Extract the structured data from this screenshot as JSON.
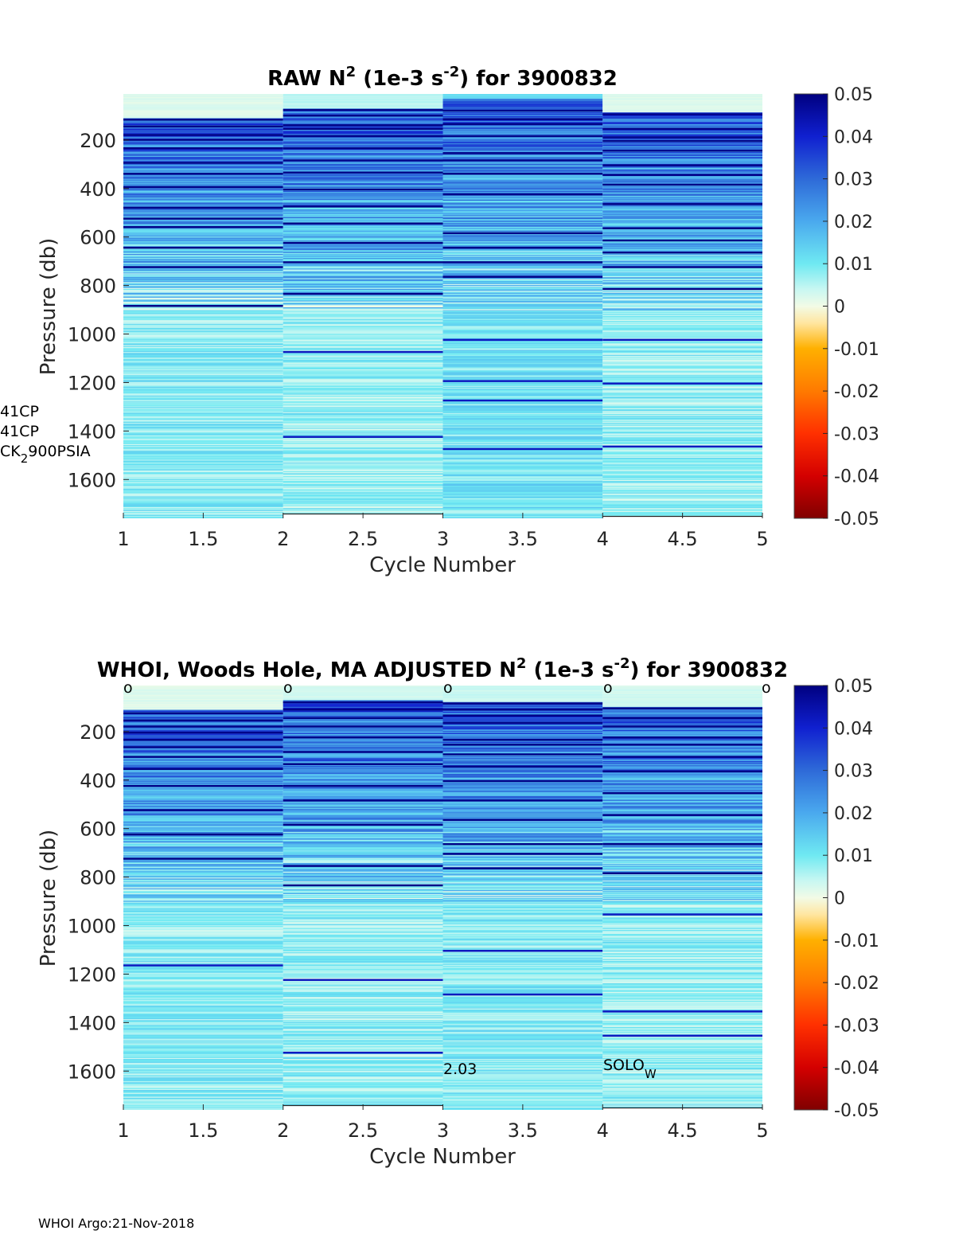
{
  "footer": "WHOI Argo:21-Nov-2018",
  "colorscale": {
    "vmin": -0.05,
    "vmax": 0.05,
    "ticks": [
      0.05,
      0.04,
      0.03,
      0.02,
      0.01,
      0,
      -0.01,
      -0.02,
      -0.03,
      -0.04,
      -0.05
    ],
    "tick_labels": [
      "0.05",
      "0.04",
      "0.03",
      "0.02",
      "0.01",
      "0",
      "-0.01",
      "-0.02",
      "-0.03",
      "-0.04",
      "-0.05"
    ],
    "stops": [
      {
        "v": -0.05,
        "c": "#800000"
      },
      {
        "v": -0.04,
        "c": "#d40000"
      },
      {
        "v": -0.03,
        "c": "#ff3000"
      },
      {
        "v": -0.02,
        "c": "#ff7a00"
      },
      {
        "v": -0.01,
        "c": "#ffb000"
      },
      {
        "v": -0.004,
        "c": "#ffe6a0"
      },
      {
        "v": 0.0,
        "c": "#f2fbe6"
      },
      {
        "v": 0.004,
        "c": "#c8f7f2"
      },
      {
        "v": 0.01,
        "c": "#6fe9f2"
      },
      {
        "v": 0.02,
        "c": "#4aa9ee"
      },
      {
        "v": 0.03,
        "c": "#2e6ad8"
      },
      {
        "v": 0.04,
        "c": "#1020d0"
      },
      {
        "v": 0.05,
        "c": "#000080"
      }
    ]
  },
  "chart_data": [
    {
      "type": "heatmap",
      "id": "raw",
      "title": {
        "main": "RAW N",
        "sup": "2",
        "mid": " (1e-3 s",
        "sup2": "-2",
        "end": ") for 3900832"
      },
      "xlabel": "Cycle Number",
      "ylabel": "Pressure (db)",
      "xlim": [
        1,
        5
      ],
      "ylim": [
        10,
        1760
      ],
      "x_ticks": [
        1,
        1.5,
        2,
        2.5,
        3,
        3.5,
        4,
        4.5,
        5
      ],
      "x_tick_labels": [
        "1",
        "1.5",
        "2",
        "2.5",
        "3",
        "3.5",
        "4",
        "4.5",
        "5"
      ],
      "y_ticks": [
        200,
        400,
        600,
        800,
        1000,
        1200,
        1400,
        1600
      ],
      "y_tick_labels": [
        "200",
        "400",
        "600",
        "800",
        "1000",
        "1200",
        "1400",
        "1600"
      ],
      "columns": [
        {
          "x0": 1,
          "x1": 2,
          "pmax": 1760,
          "top_band": [
            10,
            110,
            0.002
          ],
          "thermocline": [
            110,
            900
          ],
          "deep_level": 0.009,
          "strong_lines": [
            112,
            140,
            175,
            195,
            230,
            290,
            335,
            390,
            475,
            520,
            555,
            640,
            720,
            880
          ]
        },
        {
          "x0": 2,
          "x1": 3,
          "pmax": 1740,
          "top_band": [
            10,
            70,
            0.005
          ],
          "thermocline": [
            70,
            900
          ],
          "deep_level": 0.008,
          "strong_lines": [
            72,
            95,
            135,
            150,
            180,
            230,
            280,
            330,
            400,
            470,
            540,
            620,
            700,
            830,
            1070,
            1420
          ]
        },
        {
          "x0": 3,
          "x1": 4,
          "pmax": 1760,
          "top_band": [
            10,
            30,
            0.012
          ],
          "thermocline": [
            30,
            900
          ],
          "deep_level": 0.011,
          "strong_lines": [
            75,
            110,
            130,
            180,
            250,
            280,
            335,
            420,
            580,
            640,
            700,
            760,
            1020,
            1190,
            1270,
            1470
          ]
        },
        {
          "x0": 4,
          "x1": 5,
          "pmax": 1750,
          "top_band": [
            10,
            85,
            0.002
          ],
          "thermocline": [
            85,
            900
          ],
          "deep_level": 0.008,
          "strong_lines": [
            90,
            150,
            185,
            200,
            240,
            300,
            340,
            380,
            460,
            560,
            610,
            660,
            720,
            810,
            1020,
            1200,
            1460
          ]
        }
      ],
      "annotations": [
        {
          "text": "41CP",
          "x": 0.94,
          "p": 1345
        },
        {
          "text": "41CP",
          "x": 0.94,
          "p": 1425
        },
        {
          "text": "CK",
          "sub": "2",
          "tail": "900PSIA",
          "x": 0.94,
          "p": 1505
        }
      ]
    },
    {
      "type": "heatmap",
      "id": "adjusted",
      "title": {
        "main": "WHOI, Woods Hole, MA  ADJUSTED N",
        "sup": "2",
        "mid": " (1e-3 s",
        "sup2": "-2",
        "end": ") for 3900832"
      },
      "xlabel": "Cycle Number",
      "ylabel": "Pressure (db)",
      "xlim": [
        1,
        5
      ],
      "ylim": [
        10,
        1760
      ],
      "x_ticks": [
        1,
        1.5,
        2,
        2.5,
        3,
        3.5,
        4,
        4.5,
        5
      ],
      "x_tick_labels": [
        "1",
        "1.5",
        "2",
        "2.5",
        "3",
        "3.5",
        "4",
        "4.5",
        "5"
      ],
      "y_ticks": [
        200,
        400,
        600,
        800,
        1000,
        1200,
        1400,
        1600
      ],
      "y_tick_labels": [
        "200",
        "400",
        "600",
        "800",
        "1000",
        "1200",
        "1400",
        "1600"
      ],
      "columns": [
        {
          "x0": 1,
          "x1": 2,
          "pmax": 1760,
          "top_band": [
            10,
            110,
            0.002
          ],
          "thermocline": [
            110,
            900
          ],
          "deep_level": 0.009,
          "strong_lines": [
            120,
            150,
            175,
            200,
            230,
            260,
            300,
            350,
            420,
            520,
            620,
            720,
            1160
          ]
        },
        {
          "x0": 2,
          "x1": 3,
          "pmax": 1740,
          "top_band": [
            10,
            70,
            0.003
          ],
          "thermocline": [
            70,
            900
          ],
          "deep_level": 0.008,
          "strong_lines": [
            75,
            105,
            140,
            175,
            220,
            280,
            330,
            420,
            480,
            580,
            750,
            830,
            1220,
            1520
          ]
        },
        {
          "x0": 3,
          "x1": 4,
          "pmax": 1760,
          "top_band": [
            10,
            75,
            0.004
          ],
          "thermocline": [
            75,
            900
          ],
          "deep_level": 0.009,
          "strong_lines": [
            80,
            105,
            130,
            160,
            230,
            250,
            290,
            340,
            400,
            480,
            560,
            660,
            700,
            760,
            1100,
            1280
          ]
        },
        {
          "x0": 4,
          "x1": 5,
          "pmax": 1750,
          "top_band": [
            10,
            95,
            0.003
          ],
          "thermocline": [
            95,
            900
          ],
          "deep_level": 0.008,
          "strong_lines": [
            100,
            140,
            175,
            220,
            250,
            300,
            360,
            450,
            540,
            660,
            780,
            950,
            1350,
            1450
          ]
        }
      ],
      "markers": [
        {
          "text": "o",
          "x": 1.02
        },
        {
          "text": "o",
          "x": 2.02
        },
        {
          "text": "o",
          "x": 3.02
        },
        {
          "text": "o",
          "x": 4.02
        },
        {
          "text": "o",
          "x": 5.02
        }
      ],
      "annotations": [
        {
          "text": "2.03",
          "x": 3.0,
          "p": 1600
        },
        {
          "text": "SOLO",
          "sub": "W",
          "x": 4.0,
          "p": 1590
        }
      ]
    }
  ]
}
